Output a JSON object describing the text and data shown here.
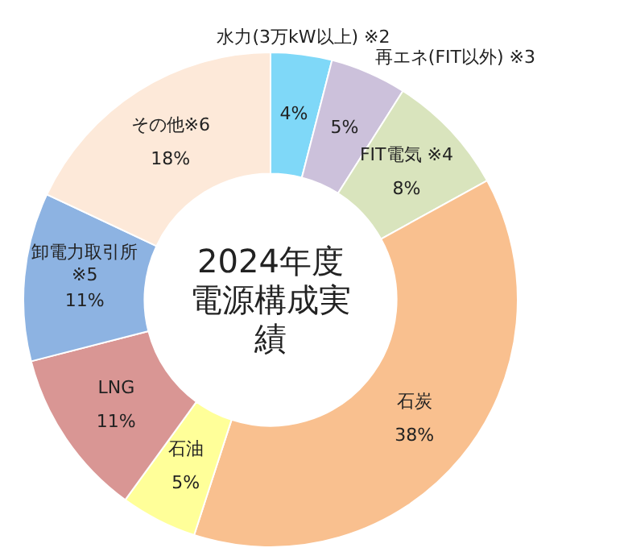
{
  "chart_data": {
    "type": "donut",
    "title": "2024年度電源構成実績",
    "categories": [
      "水力(3万kW以上) ※2",
      "再エネ(FIT以外) ※3",
      "FIT電気 ※4",
      "石炭",
      "石油",
      "LNG",
      "卸電力取引所 ※5",
      "その他※6"
    ],
    "values": [
      4,
      5,
      8,
      38,
      5,
      11,
      11,
      18
    ],
    "value_labels": [
      "4%",
      "5%",
      "8%",
      "38%",
      "5%",
      "11%",
      "11%",
      "18%"
    ],
    "colors": [
      "#7fd8f8",
      "#ccc1db",
      "#d9e4bd",
      "#f9c08f",
      "#ffff99",
      "#d99694",
      "#8db3e2",
      "#fde9d9"
    ],
    "legend": false
  }
}
